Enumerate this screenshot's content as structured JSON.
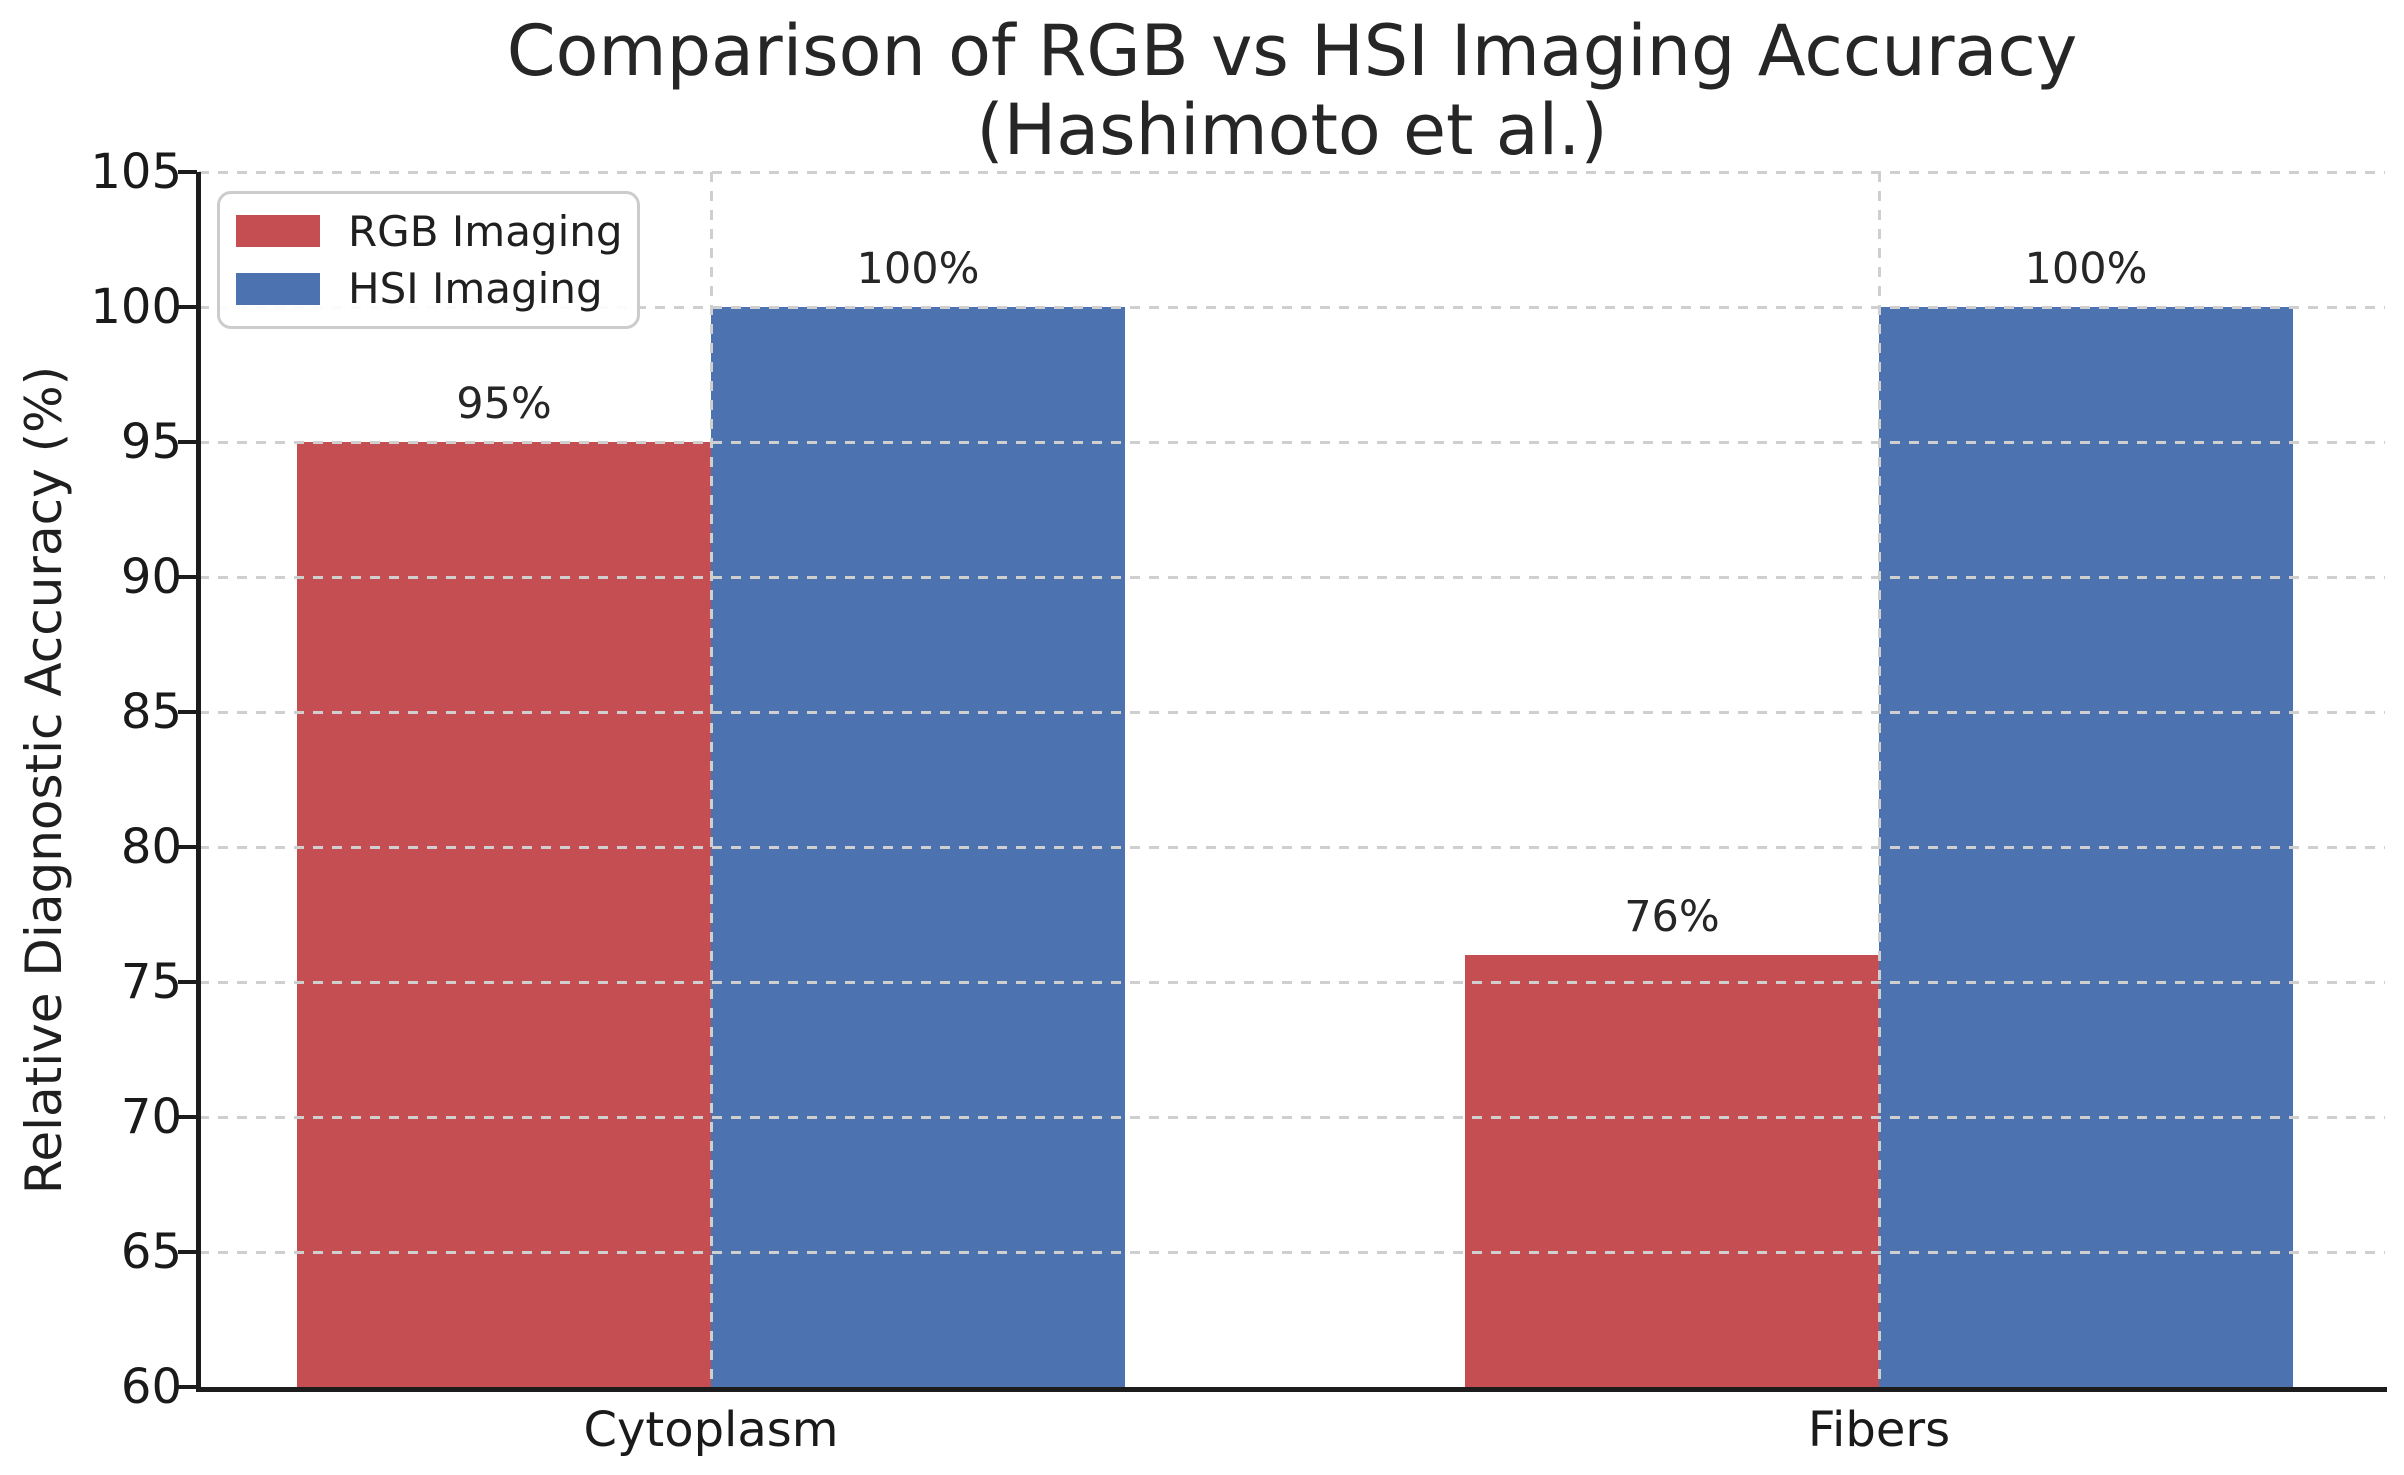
{
  "title": {
    "line1": "Comparison of RGB vs HSI Imaging Accuracy",
    "line2": "(Hashimoto et al.)"
  },
  "y_axis": {
    "label": "Relative Diagnostic Accuracy (%)"
  },
  "legend": {
    "items": [
      {
        "label": "RGB Imaging",
        "color": "#C44E52"
      },
      {
        "label": "HSI Imaging",
        "color": "#4C72B0"
      }
    ]
  },
  "colors": {
    "rgb_series": "#C44E52",
    "hsi_series": "#4C72B0",
    "grid": "#cfcfcf",
    "spine": "#1c1c1c",
    "text": "#262626"
  },
  "chart_data": {
    "type": "bar",
    "title": "Comparison of RGB vs HSI Imaging Accuracy (Hashimoto et al.)",
    "categories": [
      "Cytoplasm",
      "Fibers"
    ],
    "series": [
      {
        "name": "RGB Imaging",
        "color": "#C44E52",
        "values": [
          95,
          76
        ],
        "labels": [
          "95%",
          "76%"
        ]
      },
      {
        "name": "HSI Imaging",
        "color": "#4C72B0",
        "values": [
          100,
          100
        ],
        "labels": [
          "100%",
          "100%"
        ]
      }
    ],
    "xlabel": "",
    "ylabel": "Relative Diagnostic Accuracy (%)",
    "ylim": [
      60,
      105
    ],
    "yticks": [
      60,
      65,
      70,
      75,
      80,
      85,
      90,
      95,
      100,
      105
    ],
    "grid": true,
    "grid_style": "dashed",
    "legend_position": "upper left"
  }
}
